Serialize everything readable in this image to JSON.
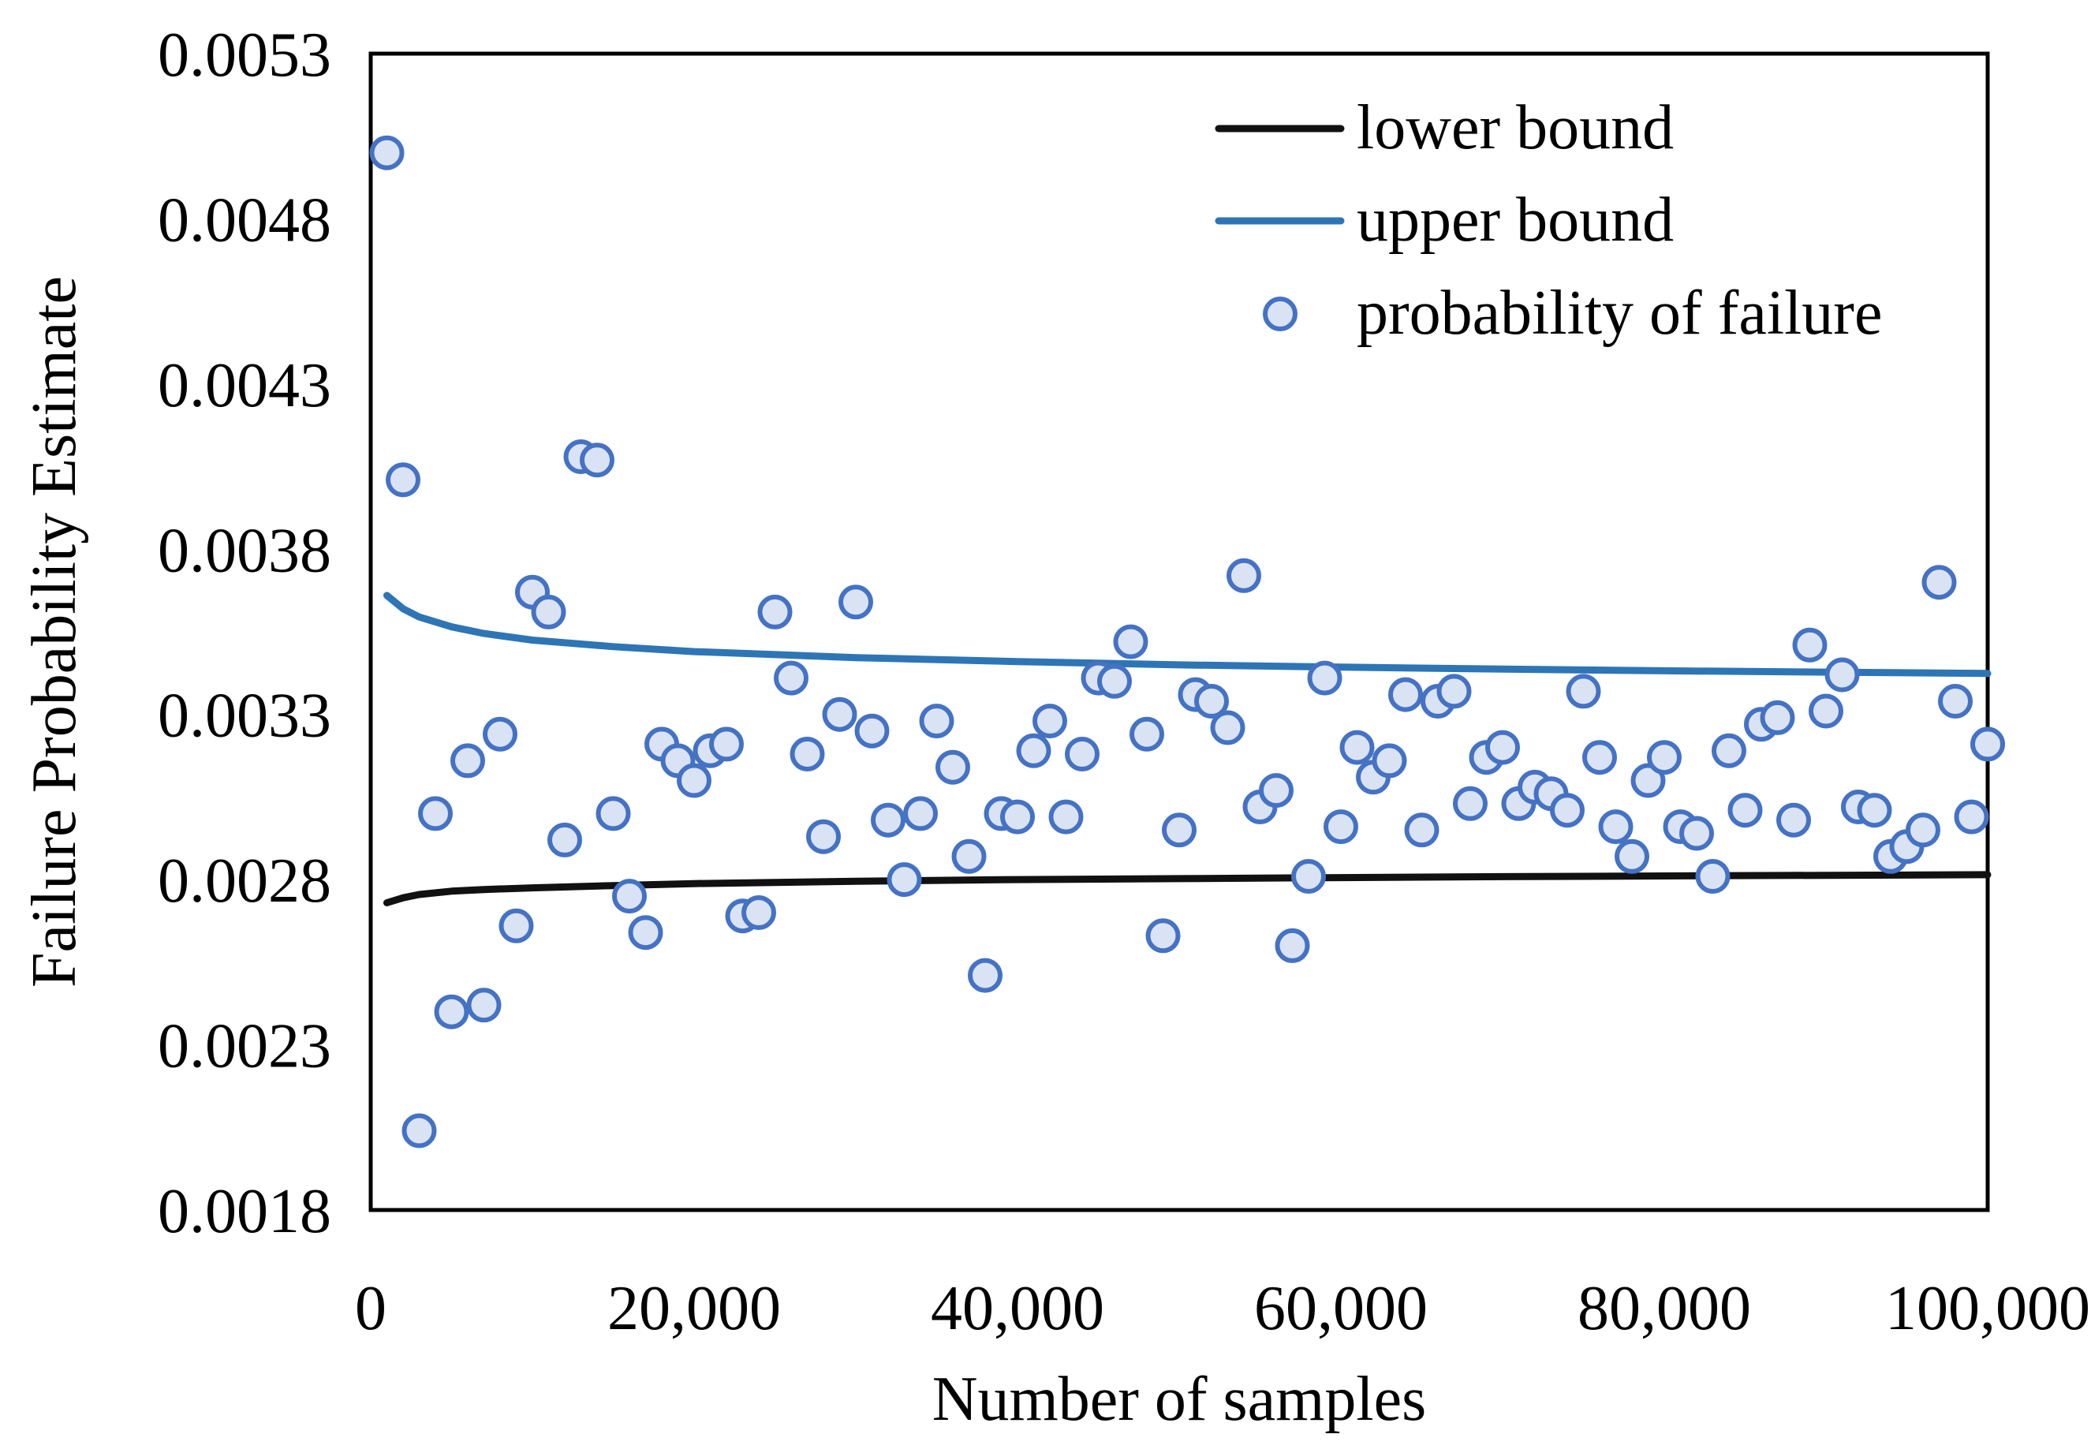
{
  "chart_data": {
    "type": "scatter",
    "title": "",
    "xlabel": "Number of samples",
    "ylabel": "Failure Probability Estimate",
    "xlim": [
      0,
      100000
    ],
    "ylim": [
      0.0018,
      0.0053
    ],
    "x_ticks": [
      0,
      20000,
      40000,
      60000,
      80000,
      100000
    ],
    "x_tick_labels": [
      "0",
      "20,000",
      "40,000",
      "60,000",
      "80,000",
      "100,000"
    ],
    "y_ticks": [
      0.0018,
      0.0023,
      0.0028,
      0.0033,
      0.0038,
      0.0043,
      0.0048,
      0.0053
    ],
    "y_tick_labels": [
      "0.0018",
      "0.0023",
      "0.0028",
      "0.0033",
      "0.0038",
      "0.0043",
      "0.0048",
      "0.0053"
    ],
    "grid": false,
    "legend_position": "top-right",
    "colors": {
      "lower": "#111111",
      "upper": "#2e75b6",
      "marker_fill": "#dae3f3",
      "marker_edge": "#4472c4"
    },
    "series": [
      {
        "name": "lower bound",
        "kind": "line",
        "x": [
          1000,
          2000,
          3000,
          5000,
          7000,
          10000,
          15000,
          20000,
          30000,
          40000,
          50000,
          60000,
          70000,
          80000,
          90000,
          100000
        ],
        "values": [
          0.00273,
          0.002745,
          0.002755,
          0.002765,
          0.00277,
          0.002775,
          0.002782,
          0.002788,
          0.002795,
          0.0028,
          0.002803,
          0.002806,
          0.002809,
          0.002811,
          0.002813,
          0.002815
        ]
      },
      {
        "name": "upper bound",
        "kind": "line",
        "x": [
          1000,
          2000,
          3000,
          5000,
          7000,
          10000,
          15000,
          20000,
          30000,
          40000,
          50000,
          60000,
          70000,
          80000,
          90000,
          100000
        ],
        "values": [
          0.00366,
          0.00362,
          0.003595,
          0.003565,
          0.003545,
          0.003525,
          0.003505,
          0.00349,
          0.003472,
          0.00346,
          0.00345,
          0.003443,
          0.003437,
          0.003432,
          0.003428,
          0.003424
        ]
      },
      {
        "name": "probability of failure",
        "kind": "scatter",
        "x": [
          1000,
          2000,
          3000,
          4000,
          5000,
          6000,
          7000,
          8000,
          9000,
          10000,
          11000,
          12000,
          13000,
          14000,
          15000,
          16000,
          17000,
          18000,
          19000,
          20000,
          21000,
          22000,
          23000,
          24000,
          25000,
          26000,
          27000,
          28000,
          29000,
          30000,
          31000,
          32000,
          33000,
          34000,
          35000,
          36000,
          37000,
          38000,
          39000,
          40000,
          41000,
          42000,
          43000,
          44000,
          45000,
          46000,
          47000,
          48000,
          49000,
          50000,
          51000,
          52000,
          53000,
          54000,
          55000,
          56000,
          57000,
          58000,
          59000,
          60000,
          61000,
          62000,
          63000,
          64000,
          65000,
          66000,
          67000,
          68000,
          69000,
          70000,
          71000,
          72000,
          73000,
          74000,
          75000,
          76000,
          77000,
          78000,
          79000,
          80000,
          81000,
          82000,
          83000,
          84000,
          85000,
          86000,
          87000,
          88000,
          89000,
          90000,
          91000,
          92000,
          93000,
          94000,
          95000,
          96000,
          97000,
          98000,
          99000,
          100000
        ],
        "values": [
          0.005,
          0.00401,
          0.00204,
          0.003,
          0.0024,
          0.00316,
          0.00242,
          0.00324,
          0.00266,
          0.00367,
          0.00361,
          0.00292,
          0.00408,
          0.00407,
          0.003,
          0.00275,
          0.00264,
          0.00321,
          0.00316,
          0.0031,
          0.00319,
          0.00321,
          0.00269,
          0.0027,
          0.00361,
          0.00341,
          0.00318,
          0.00293,
          0.0033,
          0.00364,
          0.00325,
          0.00298,
          0.0028,
          0.003,
          0.00328,
          0.00314,
          0.00287,
          0.00251,
          0.003,
          0.00299,
          0.00319,
          0.00328,
          0.00299,
          0.00318,
          0.00341,
          0.0034,
          0.00352,
          0.00324,
          0.00263,
          0.00295,
          0.00336,
          0.00334,
          0.00326,
          0.00372,
          0.00302,
          0.00307,
          0.0026,
          0.00281,
          0.00341,
          0.00296,
          0.0032,
          0.00311,
          0.00316,
          0.00336,
          0.00295,
          0.00334,
          0.00337,
          0.00303,
          0.00317,
          0.0032,
          0.00303,
          0.00308,
          0.00306,
          0.00301,
          0.00337,
          0.00317,
          0.00296,
          0.00287,
          0.0031,
          0.00317,
          0.00296,
          0.00294,
          0.00281,
          0.00319,
          0.00301,
          0.00327,
          0.00329,
          0.00298,
          0.00351,
          0.00331,
          0.00342,
          0.00302,
          0.00301,
          0.00287,
          0.0029,
          0.00295,
          0.0037,
          0.00334,
          0.00299,
          0.00321
        ]
      }
    ]
  }
}
